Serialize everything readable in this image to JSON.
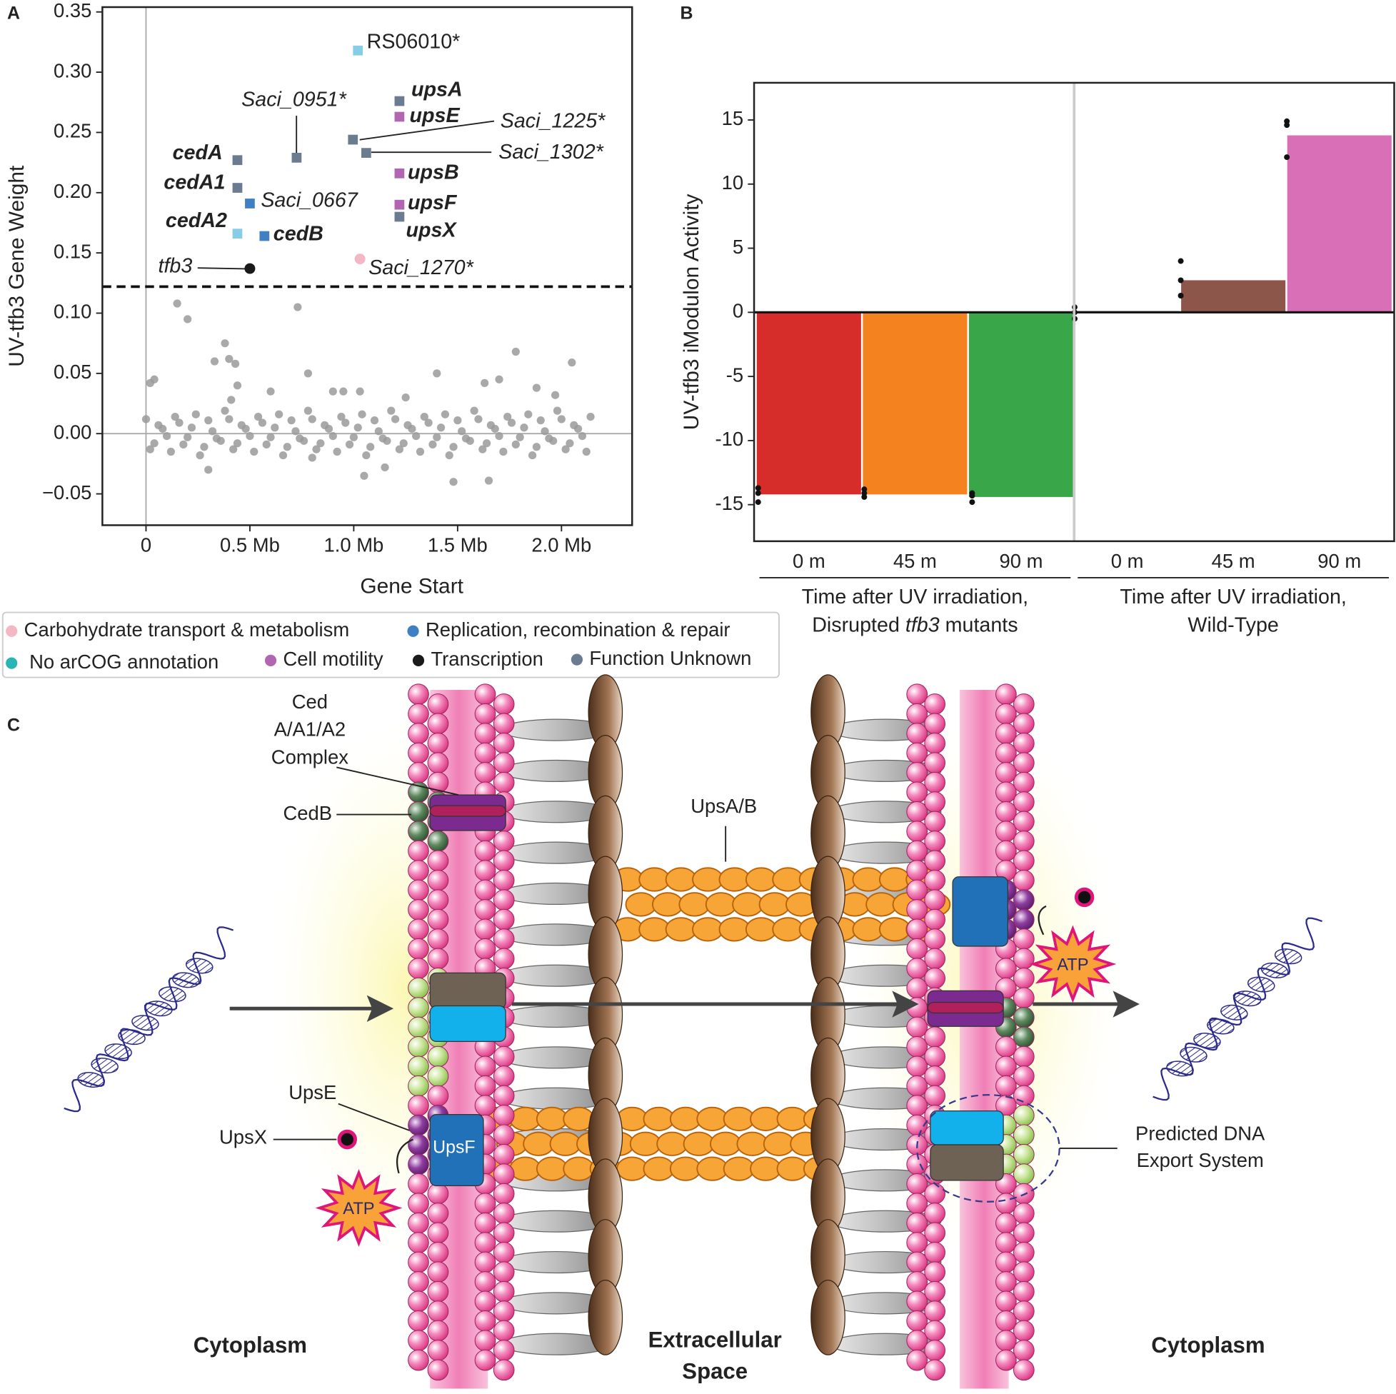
{
  "chart_data": [
    {
      "type": "scatter",
      "panel": "A",
      "xlabel": "Gene Start",
      "ylabel": "UV-tfb3 Gene Weight",
      "xlim": [
        -0.21,
        2.34
      ],
      "ylim": [
        -0.076,
        0.354
      ],
      "xticks": [
        0,
        {
          "value": 0.5,
          "label": "0.5 Mb"
        },
        {
          "value": 1.0,
          "label": "1.0 Mb"
        },
        {
          "value": 1.5,
          "label": "1.5 Mb"
        },
        {
          "value": 2.0,
          "label": "2.0 Mb"
        }
      ],
      "yticks": [
        0.35,
        {
          "value": 0.3,
          "label": "0.30"
        },
        0.25,
        {
          "value": 0.2,
          "label": "0.20"
        },
        0.15,
        {
          "value": 0.1,
          "label": "0.10"
        },
        0.05,
        {
          "value": 0,
          "label": "0.00"
        },
        {
          "value": -0.05,
          "label": "−0.05"
        }
      ],
      "threshold": 0.122,
      "background": {
        "color": "#9a9a9a",
        "x": [
          0,
          0.04,
          0.08,
          0.12,
          0.16,
          0.2,
          0.24,
          0.28,
          0.32,
          0.36,
          0.4,
          0.44,
          0.48,
          0.52,
          0.56,
          0.6,
          0.64,
          0.68,
          0.72,
          0.76,
          0.8,
          0.84,
          0.88,
          0.92,
          0.96,
          1.0,
          1.04,
          1.08,
          1.12,
          1.16,
          1.2,
          1.24,
          1.28,
          1.32,
          1.36,
          1.4,
          1.44,
          1.48,
          1.52,
          1.56,
          1.6,
          1.64,
          1.68,
          1.72,
          1.76,
          1.8,
          1.84,
          1.88,
          1.92,
          1.96,
          2.0,
          2.04,
          2.08,
          2.12,
          0.02,
          0.06,
          0.1,
          0.14,
          0.18,
          0.22,
          0.26,
          0.3,
          0.34,
          0.38,
          0.42,
          0.46,
          0.5,
          0.54,
          0.58,
          0.62,
          0.66,
          0.7,
          0.74,
          0.78,
          0.82,
          0.86,
          0.9,
          0.94,
          0.98,
          1.02,
          1.06,
          1.1,
          1.14,
          1.18,
          1.22,
          1.26,
          1.3,
          1.34,
          1.38,
          1.42,
          1.46,
          1.5,
          1.54,
          1.58,
          1.62,
          1.66,
          1.7,
          1.74,
          1.78,
          1.82,
          1.86,
          1.9,
          1.94,
          1.98,
          2.02,
          2.06,
          2.1,
          2.14,
          0.02,
          0.04,
          0.15,
          0.2,
          0.38,
          0.4,
          0.33,
          0.43,
          0.44,
          0.41,
          0.73,
          0.6,
          0.78,
          0.9,
          0.95,
          1.03,
          1.4,
          1.78,
          1.7,
          1.88,
          2.05,
          1.97,
          1.63,
          1.05,
          1.15,
          0.8,
          1.65,
          1.48,
          0.3,
          1.25
        ],
        "y": [
          0.012,
          -0.008,
          0.004,
          -0.015,
          0.009,
          -0.003,
          0.016,
          -0.011,
          0.002,
          -0.006,
          0.012,
          -0.008,
          0.004,
          -0.015,
          0.009,
          -0.003,
          0.016,
          -0.011,
          0.002,
          -0.006,
          0.012,
          -0.008,
          0.004,
          -0.015,
          0.009,
          -0.003,
          0.016,
          -0.011,
          0.002,
          -0.006,
          0.012,
          -0.008,
          0.004,
          -0.015,
          0.009,
          -0.003,
          0.016,
          -0.011,
          0.002,
          -0.006,
          0.012,
          -0.008,
          0.004,
          -0.015,
          0.009,
          -0.003,
          0.016,
          -0.011,
          0.002,
          -0.006,
          0.012,
          -0.008,
          0.004,
          -0.015,
          -0.013,
          0.007,
          -0.002,
          0.014,
          -0.009,
          0.005,
          -0.018,
          0.011,
          -0.004,
          0.019,
          -0.013,
          0.007,
          -0.002,
          0.014,
          -0.009,
          0.005,
          -0.018,
          0.011,
          -0.004,
          0.019,
          -0.013,
          0.007,
          -0.002,
          0.014,
          -0.009,
          0.005,
          -0.018,
          0.011,
          -0.004,
          0.019,
          -0.013,
          0.007,
          -0.002,
          0.014,
          -0.009,
          0.005,
          -0.018,
          0.011,
          -0.004,
          0.019,
          -0.013,
          0.007,
          -0.002,
          0.014,
          -0.009,
          0.005,
          -0.018,
          0.011,
          -0.004,
          0.019,
          -0.013,
          0.007,
          -0.002,
          0.014,
          0.042,
          0.045,
          0.108,
          0.095,
          0.075,
          0.062,
          0.06,
          0.058,
          0.04,
          0.028,
          0.105,
          0.035,
          0.05,
          0.035,
          0.035,
          0.035,
          0.05,
          0.068,
          0.045,
          0.038,
          0.059,
          0.032,
          0.042,
          -0.035,
          -0.028,
          -0.02,
          -0.039,
          -0.04,
          -0.03,
          0.03
        ]
      },
      "genes": [
        {
          "name": "RS06010*",
          "x": 1.02,
          "y": 0.318,
          "color": "#87cde8"
        },
        {
          "name": "upsA",
          "x": 1.22,
          "y": 0.276,
          "color": "#6b7b90"
        },
        {
          "name": "upsE",
          "x": 1.22,
          "y": 0.263,
          "color": "#b066b0"
        },
        {
          "name": "Saci_0951*",
          "x": 0.725,
          "y": 0.229,
          "color": "#6b7b90"
        },
        {
          "name": "Saci_1225*",
          "x": 0.996,
          "y": 0.244,
          "color": "#6b7b90"
        },
        {
          "name": "Saci_1302*",
          "x": 1.06,
          "y": 0.233,
          "color": "#6b7b90"
        },
        {
          "name": "cedA",
          "x": 0.44,
          "y": 0.227,
          "color": "#6b7b90"
        },
        {
          "name": "cedA1",
          "x": 0.44,
          "y": 0.204,
          "color": "#6b7b90"
        },
        {
          "name": "Saci_0667",
          "x": 0.5,
          "y": 0.191,
          "color": "#3f7fc4"
        },
        {
          "name": "upsB",
          "x": 1.22,
          "y": 0.216,
          "color": "#b066b0"
        },
        {
          "name": "upsF",
          "x": 1.22,
          "y": 0.19,
          "color": "#b066b0"
        },
        {
          "name": "upsX",
          "x": 1.22,
          "y": 0.18,
          "color": "#6b7b90"
        },
        {
          "name": "cedA2",
          "x": 0.44,
          "y": 0.166,
          "color": "#87cde8"
        },
        {
          "name": "cedB",
          "x": 0.57,
          "y": 0.164,
          "color": "#3f7fc4"
        },
        {
          "name": "Saci_1270*",
          "x": 1.03,
          "y": 0.145,
          "color": "#f4b8c4"
        },
        {
          "name": "tfb3",
          "x": 0.5,
          "y": 0.137,
          "color": "#1a1a1a"
        }
      ],
      "legend": [
        {
          "name": "Carbohydrate transport & metabolism",
          "color": "#f4b8c4"
        },
        {
          "name": "Replication, recombination & repair",
          "color": "#3f7fc4"
        },
        {
          "name": "No arCOG annotation",
          "color": "#2ab5b5"
        },
        {
          "name": "Cell motility",
          "color": "#b066b0"
        },
        {
          "name": "Transcription",
          "color": "#1a1a1a"
        },
        {
          "name": "Function Unknown",
          "color": "#6b7b90"
        }
      ]
    },
    {
      "type": "bar",
      "panel": "B",
      "ylabel": "UV-tfb3 iModulon Activity",
      "ylim": [
        -17.85,
        17.9
      ],
      "yticks": [
        15,
        10,
        5,
        0,
        -5,
        -10,
        -15
      ],
      "categories": [
        "0 m",
        "45 m",
        "90 m",
        "0 m",
        "45 m",
        "90 m"
      ],
      "values": [
        -14.2,
        -14.2,
        -14.4,
        0.1,
        2.5,
        13.8
      ],
      "colors": [
        "#d62d2a",
        "#f4821f",
        "#3aa64a",
        "#9467bd",
        "#8c564b",
        "#d96fb6"
      ],
      "replicates": [
        [
          -13.7,
          -14.1,
          -14.8
        ],
        [
          -13.8,
          -14.1,
          -14.4
        ],
        [
          -14.1,
          -14.3,
          -14.8
        ],
        [
          0.4,
          0.0,
          -0.5
        ],
        [
          4.0,
          2.5,
          1.3
        ],
        [
          14.9,
          14.6,
          12.1
        ]
      ],
      "groups": [
        {
          "title": "Time after UV irradiation,",
          "subtitle": [
            "Disrupted ",
            "tfb3",
            " mutants"
          ]
        },
        {
          "title": "Time after UV irradiation,",
          "subtitle": [
            "Wild-Type"
          ]
        }
      ]
    }
  ],
  "diagram": {
    "panel": "C",
    "ced_complex": [
      "Ced",
      "A/A1/A2",
      "Complex"
    ],
    "cedb": "CedB",
    "upsab": "UpsA/B",
    "upse": "UpsE",
    "upsx": "UpsX",
    "upsf": "UpsF",
    "atp": [
      "ATP",
      "ATP"
    ],
    "export_system": [
      "Predicted DNA",
      "Export System"
    ],
    "left_compartment": "Cytoplasm",
    "middle_compartment": [
      "Extracellular",
      "Space"
    ],
    "right_compartment": "Cytoplasm"
  }
}
